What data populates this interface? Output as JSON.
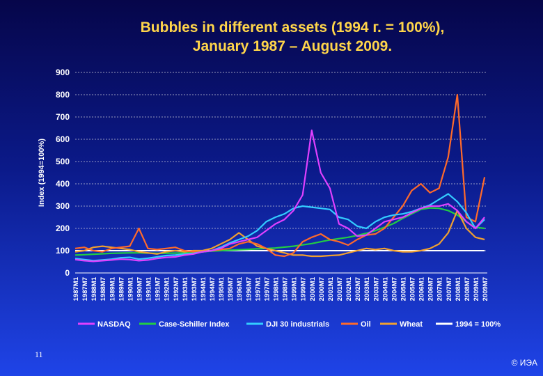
{
  "slide": {
    "number": "11",
    "copyright": "© ИЭА"
  },
  "chart_data": {
    "type": "line",
    "title_line1": "Bubbles in different assets (1994 г. = 100%),",
    "title_line2": "January 1987 – August 2009.",
    "ylabel": "Index (1994=100%)",
    "xlabel": "",
    "ylim": [
      0,
      900
    ],
    "yticks": [
      0,
      100,
      200,
      300,
      400,
      500,
      600,
      700,
      800,
      900
    ],
    "grid": true,
    "legend_position": "bottom",
    "x": [
      1987.0,
      1987.5,
      1988.0,
      1988.5,
      1989.0,
      1989.5,
      1990.0,
      1990.5,
      1991.0,
      1991.5,
      1992.0,
      1992.5,
      1993.0,
      1993.5,
      1994.0,
      1994.5,
      1995.0,
      1995.5,
      1996.0,
      1996.5,
      1997.0,
      1997.5,
      1998.0,
      1998.5,
      1999.0,
      1999.5,
      2000.0,
      2000.5,
      2001.0,
      2001.5,
      2002.0,
      2002.5,
      2003.0,
      2003.5,
      2004.0,
      2004.5,
      2005.0,
      2005.5,
      2006.0,
      2006.5,
      2007.0,
      2007.5,
      2008.0,
      2008.5,
      2009.0,
      2009.5
    ],
    "x_tick_labels": [
      "1987M1",
      "1987M7",
      "1988M1",
      "1988M7",
      "1989M1",
      "1989M7",
      "1990M1",
      "1990M7",
      "1991M1",
      "1991M7",
      "1992M1",
      "1992M7",
      "1993M1",
      "1993M7",
      "1994M1",
      "1994M7",
      "1995M1",
      "1995M7",
      "1996M1",
      "1996M7",
      "1997M1",
      "1997M7",
      "1998M1",
      "1998M7",
      "1999M1",
      "1999M7",
      "2000M1",
      "2000M7",
      "2001M1",
      "2001M7",
      "2002M1",
      "2002M7",
      "2003M1",
      "2003M7",
      "2004M1",
      "2004M7",
      "2005M1",
      "2005M7",
      "2006M1",
      "2006M7",
      "2007M1",
      "2007M7",
      "2008M1",
      "2008M7",
      "2009M1",
      "2009M7"
    ],
    "series": [
      {
        "name": "NASDAQ",
        "color": "#e040ff",
        "values": [
          60,
          55,
          52,
          55,
          58,
          62,
          60,
          55,
          58,
          65,
          70,
          72,
          80,
          85,
          95,
          100,
          110,
          130,
          140,
          150,
          160,
          190,
          220,
          240,
          280,
          350,
          640,
          450,
          380,
          220,
          200,
          165,
          170,
          200,
          230,
          240,
          250,
          270,
          290,
          300,
          300,
          310,
          280,
          230,
          200,
          250
        ]
      },
      {
        "name": "Case-Schiller Index",
        "color": "#22cc44",
        "values": [
          80,
          82,
          84,
          86,
          88,
          89,
          90,
          90,
          89,
          88,
          88,
          89,
          90,
          92,
          95,
          98,
          100,
          102,
          104,
          106,
          108,
          110,
          112,
          116,
          120,
          126,
          132,
          140,
          148,
          154,
          160,
          168,
          178,
          190,
          205,
          222,
          245,
          265,
          285,
          292,
          290,
          280,
          260,
          230,
          205,
          200
        ]
      },
      {
        "name": "DJI 30 industrials",
        "color": "#33ccff",
        "values": [
          65,
          60,
          55,
          58,
          62,
          68,
          70,
          62,
          66,
          72,
          78,
          80,
          85,
          88,
          95,
          100,
          115,
          135,
          150,
          165,
          190,
          230,
          250,
          265,
          290,
          300,
          295,
          290,
          285,
          250,
          240,
          210,
          200,
          230,
          250,
          260,
          265,
          275,
          290,
          305,
          330,
          355,
          320,
          270,
          200,
          240
        ]
      },
      {
        "name": "Oil",
        "color": "#ff6a2a",
        "values": [
          110,
          115,
          100,
          95,
          110,
          115,
          120,
          200,
          110,
          105,
          110,
          115,
          100,
          95,
          95,
          100,
          105,
          110,
          130,
          140,
          130,
          110,
          80,
          75,
          90,
          140,
          160,
          175,
          150,
          140,
          125,
          150,
          170,
          175,
          200,
          250,
          300,
          370,
          400,
          360,
          380,
          520,
          800,
          250,
          230,
          430
        ]
      },
      {
        "name": "Wheat",
        "color": "#f0a030",
        "values": [
          95,
          100,
          115,
          120,
          115,
          110,
          105,
          95,
          90,
          85,
          95,
          100,
          95,
          100,
          100,
          110,
          130,
          150,
          180,
          150,
          120,
          110,
          100,
          90,
          80,
          80,
          75,
          75,
          78,
          80,
          90,
          100,
          110,
          105,
          110,
          100,
          95,
          95,
          100,
          110,
          130,
          180,
          280,
          200,
          160,
          150
        ]
      },
      {
        "name": "1994 = 100%",
        "color": "#ffffff",
        "values": [
          100,
          100,
          100,
          100,
          100,
          100,
          100,
          100,
          100,
          100,
          100,
          100,
          100,
          100,
          100,
          100,
          100,
          100,
          100,
          100,
          100,
          100,
          100,
          100,
          100,
          100,
          100,
          100,
          100,
          100,
          100,
          100,
          100,
          100,
          100,
          100,
          100,
          100,
          100,
          100,
          100,
          100,
          100,
          100,
          100,
          100
        ]
      }
    ]
  }
}
